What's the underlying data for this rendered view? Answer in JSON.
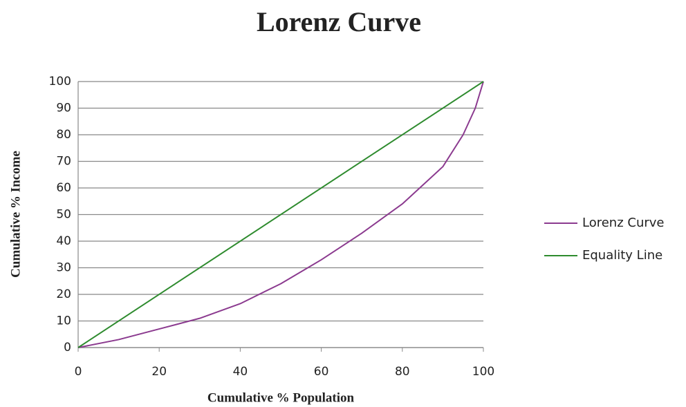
{
  "chart_data": {
    "type": "line",
    "title": "Lorenz Curve",
    "x_label": "Cumulative % Population",
    "y_label": "Cumulative % Income",
    "xlim": [
      0,
      100
    ],
    "ylim": [
      0,
      100
    ],
    "xticks": [
      0,
      20,
      40,
      60,
      80,
      100
    ],
    "yticks": [
      0,
      10,
      20,
      30,
      40,
      50,
      60,
      70,
      80,
      90,
      100
    ],
    "grid": true,
    "series": [
      {
        "name": "Lorenz Curve",
        "color": "#8b3a8f",
        "x": [
          0,
          10,
          20,
          30,
          40,
          50,
          60,
          70,
          80,
          90,
          95,
          98,
          100
        ],
        "values": [
          0,
          3,
          7,
          11,
          16.5,
          24,
          33,
          43,
          54,
          68,
          80,
          90,
          100
        ]
      },
      {
        "name": "Equality Line",
        "color": "#2e8b2e",
        "x": [
          0,
          100
        ],
        "values": [
          0,
          100
        ]
      }
    ]
  }
}
